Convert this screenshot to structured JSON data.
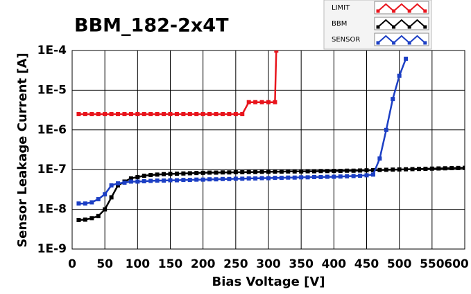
{
  "chart_data": {
    "type": "line",
    "title": "BBM_182-2x4T",
    "x_label": "Bias Voltage [V]",
    "y_label": "Sensor Leakage Current [A]",
    "log_y": true,
    "grid": true,
    "legend": "top-right",
    "xlim": [
      0,
      600
    ],
    "xticks": [
      0,
      50,
      100,
      150,
      200,
      250,
      300,
      350,
      400,
      450,
      500,
      550,
      600
    ],
    "ylim": [
      1e-09,
      0.0001
    ],
    "yticks": [
      {
        "value": 1e-09,
        "label": "1E-9"
      },
      {
        "value": 1e-08,
        "label": "1E-8"
      },
      {
        "value": 1e-07,
        "label": "1E-7"
      },
      {
        "value": 1e-06,
        "label": "1E-6"
      },
      {
        "value": 1e-05,
        "label": "1E-5"
      },
      {
        "value": 0.0001,
        "label": "1E-4"
      }
    ],
    "series": [
      {
        "name": "LIMIT",
        "color": "#e8141c",
        "x": [
          10,
          20,
          30,
          40,
          50,
          60,
          70,
          80,
          90,
          100,
          110,
          120,
          130,
          140,
          150,
          160,
          170,
          180,
          190,
          200,
          210,
          220,
          230,
          240,
          250,
          260,
          270,
          280,
          290,
          300,
          310,
          312
        ],
        "values": [
          2.5e-06,
          2.5e-06,
          2.5e-06,
          2.5e-06,
          2.5e-06,
          2.5e-06,
          2.5e-06,
          2.5e-06,
          2.5e-06,
          2.5e-06,
          2.5e-06,
          2.5e-06,
          2.5e-06,
          2.5e-06,
          2.5e-06,
          2.5e-06,
          2.5e-06,
          2.5e-06,
          2.5e-06,
          2.5e-06,
          2.5e-06,
          2.5e-06,
          2.5e-06,
          2.5e-06,
          2.5e-06,
          2.5e-06,
          5e-06,
          5e-06,
          5e-06,
          5e-06,
          5e-06,
          0.0001
        ]
      },
      {
        "name": "BBM",
        "color": "#000000",
        "x": [
          10,
          20,
          30,
          40,
          50,
          60,
          70,
          80,
          90,
          100,
          110,
          120,
          130,
          140,
          150,
          160,
          170,
          180,
          190,
          200,
          210,
          220,
          230,
          240,
          250,
          260,
          270,
          280,
          290,
          300,
          310,
          320,
          330,
          340,
          350,
          360,
          370,
          380,
          390,
          400,
          410,
          420,
          430,
          440,
          450,
          460,
          470,
          480,
          490,
          500,
          510,
          520,
          530,
          540,
          550,
          560,
          570,
          580,
          590,
          600
        ],
        "values": [
          5.4e-09,
          5.5e-09,
          6e-09,
          6.8e-09,
          1e-08,
          2e-08,
          4e-08,
          5e-08,
          6e-08,
          6.5e-08,
          7e-08,
          7.3e-08,
          7.5e-08,
          7.7e-08,
          7.8e-08,
          7.9e-08,
          8e-08,
          8.1e-08,
          8.2e-08,
          8.3e-08,
          8.4e-08,
          8.4e-08,
          8.5e-08,
          8.5e-08,
          8.6e-08,
          8.6e-08,
          8.7e-08,
          8.7e-08,
          8.8e-08,
          8.8e-08,
          8.9e-08,
          8.9e-08,
          9e-08,
          9e-08,
          9e-08,
          9.1e-08,
          9.1e-08,
          9.2e-08,
          9.2e-08,
          9.3e-08,
          9.3e-08,
          9.4e-08,
          9.4e-08,
          9.5e-08,
          9.6e-08,
          9.7e-08,
          9.8e-08,
          9.9e-08,
          1e-07,
          1.01e-07,
          1.02e-07,
          1.03e-07,
          1.04e-07,
          1.05e-07,
          1.06e-07,
          1.07e-07,
          1.08e-07,
          1.09e-07,
          1.1e-07,
          1.11e-07
        ]
      },
      {
        "name": "SENSOR",
        "color": "#1c3fc4",
        "x": [
          10,
          20,
          30,
          40,
          50,
          60,
          70,
          80,
          90,
          100,
          110,
          120,
          130,
          140,
          150,
          160,
          170,
          180,
          190,
          200,
          210,
          220,
          230,
          240,
          250,
          260,
          270,
          280,
          290,
          300,
          310,
          320,
          330,
          340,
          350,
          360,
          370,
          380,
          390,
          400,
          410,
          420,
          430,
          440,
          450,
          460,
          470,
          480,
          490,
          500,
          510
        ],
        "values": [
          1.4e-08,
          1.4e-08,
          1.5e-08,
          1.8e-08,
          2.4e-08,
          4e-08,
          4.5e-08,
          4.7e-08,
          5e-08,
          5e-08,
          5.1e-08,
          5.2e-08,
          5.3e-08,
          5.3e-08,
          5.4e-08,
          5.4e-08,
          5.5e-08,
          5.5e-08,
          5.6e-08,
          5.6e-08,
          5.7e-08,
          5.7e-08,
          5.8e-08,
          5.8e-08,
          5.9e-08,
          5.9e-08,
          6e-08,
          6e-08,
          6.1e-08,
          6.1e-08,
          6.2e-08,
          6.2e-08,
          6.3e-08,
          6.3e-08,
          6.4e-08,
          6.4e-08,
          6.5e-08,
          6.5e-08,
          6.6e-08,
          6.6e-08,
          6.7e-08,
          6.8e-08,
          6.9e-08,
          7e-08,
          7.2e-08,
          7.5e-08,
          1.9e-07,
          1e-06,
          6e-06,
          2.3e-05,
          6.2e-05
        ]
      }
    ]
  }
}
